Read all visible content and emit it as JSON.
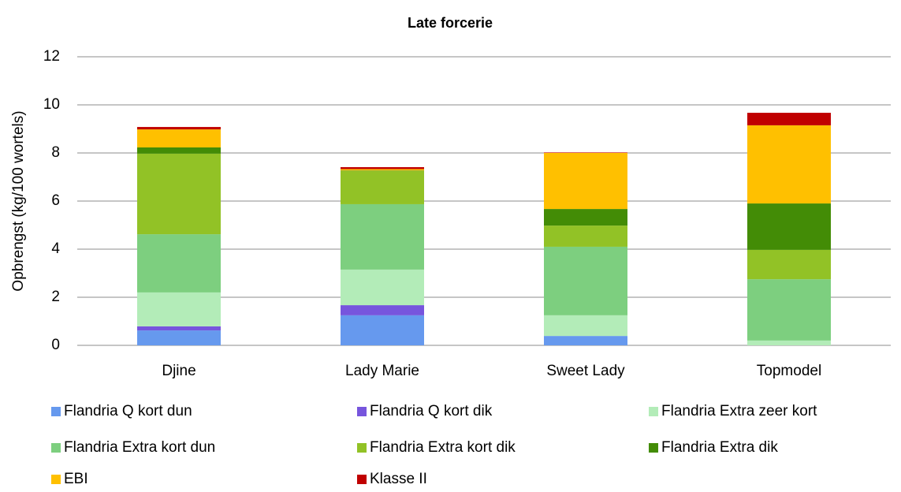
{
  "chart_data": {
    "type": "stacked_bar",
    "title": "Late forcerie",
    "y_label": "Opbrengst (kg/100 wortels)",
    "categories": [
      "Djine",
      "Lady Marie",
      "Sweet Lady",
      "Topmodel"
    ],
    "series": [
      {
        "name": "Flandria Q kort dun",
        "color": "#6699ee",
        "values": [
          0.62,
          1.25,
          0.39,
          0
        ]
      },
      {
        "name": "Flandria Q kort dik",
        "color": "#7755dd",
        "values": [
          0.17,
          0.42,
          0,
          0
        ]
      },
      {
        "name": "Flandria Extra zeer kort",
        "color": "#b3ecb8",
        "values": [
          1.41,
          1.48,
          0.86,
          0.2
        ]
      },
      {
        "name": "Flandria Extra kort dun",
        "color": "#7dcf7f",
        "values": [
          2.42,
          2.72,
          2.85,
          2.55
        ]
      },
      {
        "name": "Flandria Extra kort dik",
        "color": "#92c226",
        "values": [
          3.35,
          1.38,
          0.88,
          1.22
        ]
      },
      {
        "name": "Flandria Extra dik",
        "color": "#438c06",
        "values": [
          0.26,
          0.02,
          0.69,
          1.93
        ]
      },
      {
        "name": "EBI",
        "color": "#ffc000",
        "values": [
          0.75,
          0.06,
          2.33,
          3.25
        ]
      },
      {
        "name": "Klasse II",
        "color": "#c00000",
        "values": [
          0.1,
          0.08,
          0.02,
          0.52
        ]
      }
    ],
    "ylim": [
      0,
      12
    ],
    "yticks": [
      0,
      2,
      4,
      6,
      8,
      10,
      12
    ],
    "grid": true
  }
}
